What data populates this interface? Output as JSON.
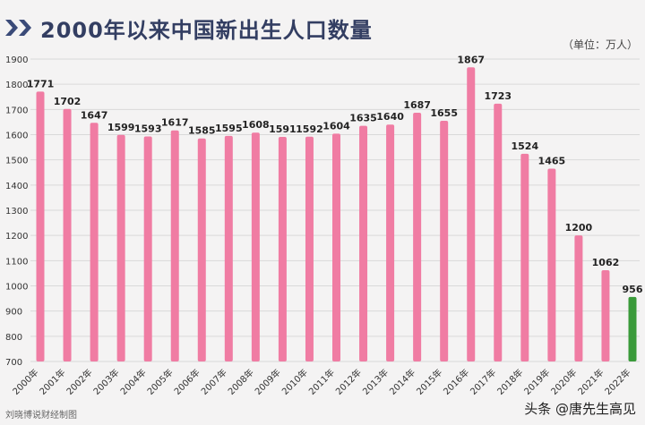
{
  "header": {
    "title": "2000年以来中国新出生人口数量",
    "unit": "（单位：万人）"
  },
  "footer": {
    "credit": "刘晓博说财经制图",
    "source_mark": "头条 @唐先生高见"
  },
  "colors": {
    "bar": "#f07ca3",
    "bar_highlight": "#3a9a3a",
    "title": "#333e62",
    "chevron": "#3a4a78",
    "grid": "#d9d9d9"
  },
  "chart_data": {
    "type": "bar",
    "title": "2000年以来中国新出生人口数量",
    "xlabel": "",
    "ylabel": "",
    "unit": "万人",
    "ylim": [
      700,
      1900
    ],
    "yticks": [
      700,
      800,
      900,
      1000,
      1100,
      1200,
      1300,
      1400,
      1500,
      1600,
      1700,
      1800,
      1900
    ],
    "grid": true,
    "legend": "none",
    "categories": [
      "2000年",
      "2001年",
      "2002年",
      "2003年",
      "2004年",
      "2005年",
      "2006年",
      "2007年",
      "2008年",
      "2009年",
      "2010年",
      "2011年",
      "2012年",
      "2013年",
      "2014年",
      "2015年",
      "2016年",
      "2017年",
      "2018年",
      "2019年",
      "2020年",
      "2021年",
      "2022年"
    ],
    "values": [
      1771,
      1702,
      1647,
      1599,
      1593,
      1617,
      1585,
      1595,
      1608,
      1591,
      1592,
      1604,
      1635,
      1640,
      1687,
      1655,
      1867,
      1723,
      1524,
      1465,
      1200,
      1062,
      956
    ],
    "highlight_category": "2022年"
  }
}
